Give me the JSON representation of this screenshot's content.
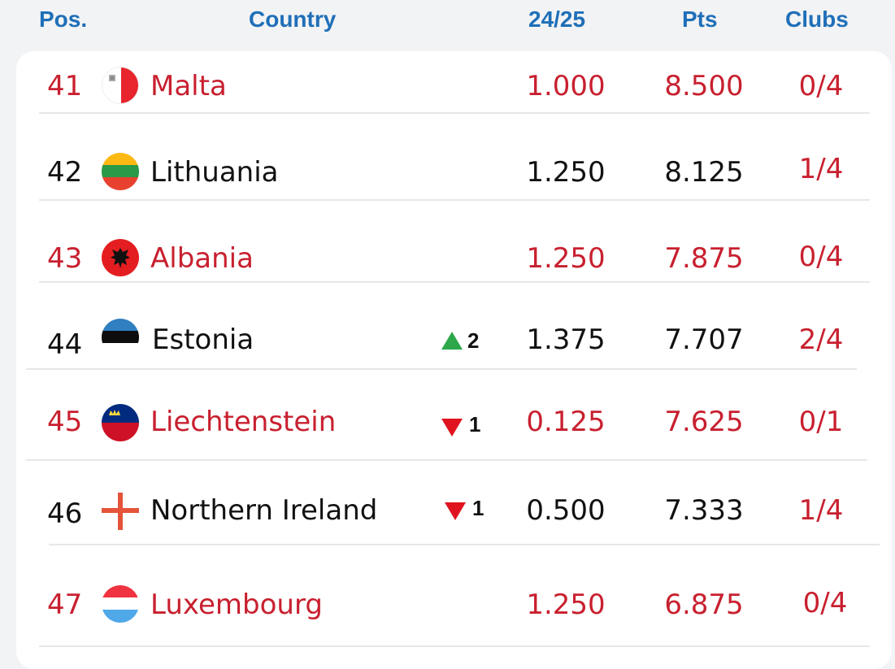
{
  "header": {
    "pos": "Pos.",
    "country": "Country",
    "season": "24/25",
    "pts": "Pts",
    "clubs": "Clubs"
  },
  "colors": {
    "header_blue": "#1f6fb8",
    "highlight_red": "#c8202f",
    "up_green": "#2ea84a",
    "down_red": "#e0141e"
  },
  "rows": [
    {
      "pos": "41",
      "country": "Malta",
      "flag": "malta-flag-icon",
      "change": "",
      "season": "1.000",
      "pts": "8.500",
      "clubs": "0/4"
    },
    {
      "pos": "42",
      "country": "Lithuania",
      "flag": "lithuania-flag-icon",
      "change": "",
      "season": "1.250",
      "pts": "8.125",
      "clubs": "1/4"
    },
    {
      "pos": "43",
      "country": "Albania",
      "flag": "albania-flag-icon",
      "change": "",
      "season": "1.250",
      "pts": "7.875",
      "clubs": "0/4"
    },
    {
      "pos": "44",
      "country": "Estonia",
      "flag": "estonia-flag-icon",
      "change": "2",
      "change_dir": "up",
      "season": "1.375",
      "pts": "7.707",
      "clubs": "2/4"
    },
    {
      "pos": "45",
      "country": "Liechtenstein",
      "flag": "liechtenstein-flag-icon",
      "change": "1",
      "change_dir": "down",
      "season": "0.125",
      "pts": "7.625",
      "clubs": "0/1"
    },
    {
      "pos": "46",
      "country": "Northern Ireland",
      "flag": "northern-ireland-flag-icon",
      "change": "1",
      "change_dir": "down",
      "season": "0.500",
      "pts": "7.333",
      "clubs": "1/4"
    },
    {
      "pos": "47",
      "country": "Luxembourg",
      "flag": "luxembourg-flag-icon",
      "change": "",
      "season": "1.250",
      "pts": "6.875",
      "clubs": "0/4"
    }
  ]
}
